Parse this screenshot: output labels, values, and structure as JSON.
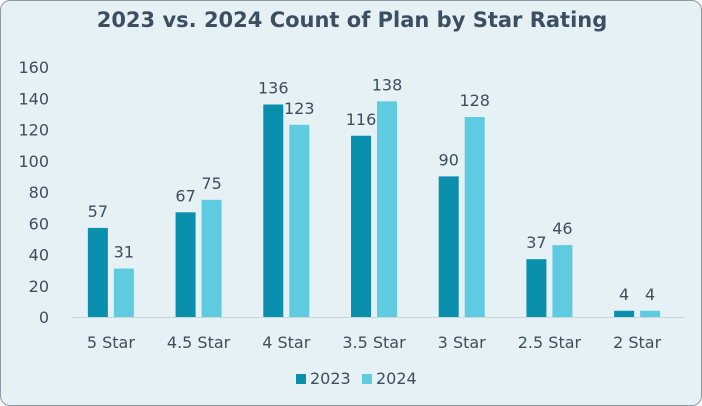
{
  "chart_data": {
    "type": "bar",
    "title": "2023 vs. 2024 Count of Plan by Star Rating",
    "xlabel": "",
    "ylabel": "",
    "categories": [
      "5 Star",
      "4.5 Star",
      "4 Star",
      "3.5 Star",
      "3 Star",
      "2.5 Star",
      "2 Star"
    ],
    "series": [
      {
        "name": "2023",
        "color": "#0a8fad",
        "values": [
          57,
          67,
          136,
          116,
          90,
          37,
          4
        ]
      },
      {
        "name": "2024",
        "color": "#5ecbe0",
        "values": [
          31,
          75,
          123,
          138,
          128,
          46,
          4
        ]
      }
    ],
    "ylim": [
      0,
      160
    ],
    "yticks": [
      0,
      20,
      40,
      60,
      80,
      100,
      120,
      140,
      160
    ],
    "grid": false,
    "legend": "bottom",
    "colors": {
      "background": "#e6f1f5",
      "text": "#3d4f5c"
    }
  }
}
